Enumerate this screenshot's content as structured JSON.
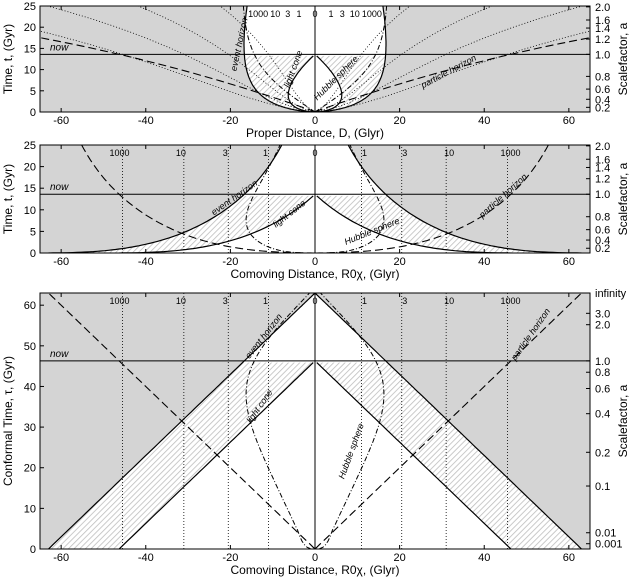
{
  "chart_data": [
    {
      "type": "line",
      "panel": "proper-distance",
      "xlabel": "Proper Distance, D, (Glyr)",
      "ylabel": "Time, t, (Gyr)",
      "y2label": "Scalefactor, a",
      "xlim": [
        -65,
        65
      ],
      "ylim": [
        0,
        25
      ],
      "xticks": [
        -60,
        -40,
        -20,
        0,
        20,
        40,
        60
      ],
      "yticks": [
        0,
        5,
        10,
        15,
        20,
        25
      ],
      "y2ticks": [
        {
          "label": "0.2",
          "t": 1.1
        },
        {
          "label": "0.4",
          "t": 3.0
        },
        {
          "label": "0.6",
          "t": 5.4
        },
        {
          "label": "0.8",
          "t": 8.4
        },
        {
          "label": "1.0",
          "t": 13.6
        },
        {
          "label": "1.2",
          "t": 17.2
        },
        {
          "label": "1.4",
          "t": 19.8
        },
        {
          "label": "1.6",
          "t": 21.7
        },
        {
          "label": "2.0",
          "t": 24.8
        }
      ],
      "now_t": 13.6,
      "now_label": "now",
      "redshift_labels": [
        "1000",
        "10",
        "3",
        "1",
        "0",
        "1",
        "3",
        "10",
        "1000"
      ],
      "annotations": [
        "event horizon",
        "light cone",
        "Hubble sphere",
        "particle horizon"
      ]
    },
    {
      "type": "line",
      "panel": "comoving-distance",
      "xlabel": "Comoving Distance, R0χ, (Glyr)",
      "ylabel": "Time, t, (Gyr)",
      "y2label": "Scalefactor, a",
      "xlim": [
        -65,
        65
      ],
      "ylim": [
        0,
        25
      ],
      "xticks": [
        -60,
        -40,
        -20,
        0,
        20,
        40,
        60
      ],
      "yticks": [
        0,
        5,
        10,
        15,
        20,
        25
      ],
      "y2ticks": [
        {
          "label": "0.2",
          "t": 1.1
        },
        {
          "label": "0.4",
          "t": 3.0
        },
        {
          "label": "0.6",
          "t": 5.4
        },
        {
          "label": "0.8",
          "t": 8.4
        },
        {
          "label": "1.0",
          "t": 13.6
        },
        {
          "label": "1.2",
          "t": 17.2
        },
        {
          "label": "1.4",
          "t": 19.8
        },
        {
          "label": "1.6",
          "t": 21.7
        },
        {
          "label": "2.0",
          "t": 24.8
        }
      ],
      "now_t": 13.6,
      "now_label": "now",
      "redshift_labels": [
        "1000",
        "10",
        "3",
        "1",
        "0",
        "1",
        "3",
        "10",
        "1000"
      ],
      "redshift_x": [
        -45.5,
        -31,
        -20.5,
        -11,
        0,
        11,
        20.5,
        31,
        45.5
      ],
      "annotations": [
        "event horizon",
        "light cone",
        "Hubble sphere",
        "particle horizon"
      ]
    },
    {
      "type": "line",
      "panel": "conformal-time",
      "xlabel": "Comoving Distance, R0χ, (Glyr)",
      "ylabel": "Conformal Time, τ, (Gyr)",
      "y2label": "Scalefactor, a",
      "xlim": [
        -65,
        65
      ],
      "ylim": [
        0,
        63
      ],
      "xticks": [
        -60,
        -40,
        -20,
        0,
        20,
        40,
        60
      ],
      "yticks": [
        0,
        10,
        20,
        30,
        40,
        50,
        60
      ],
      "y2ticks": [
        {
          "label": "infinity",
          "tau": 63.0
        },
        {
          "label": "3.0",
          "tau": 58.0
        },
        {
          "label": "2.0",
          "tau": 55.2
        },
        {
          "label": "1.0",
          "tau": 46.3
        },
        {
          "label": "0.8",
          "tau": 43.5
        },
        {
          "label": "0.6",
          "tau": 39.5
        },
        {
          "label": "0.4",
          "tau": 33.3
        },
        {
          "label": "0.2",
          "tau": 23.8
        },
        {
          "label": "0.1",
          "tau": 15.5
        },
        {
          "label": "0.01",
          "tau": 4.0
        },
        {
          "label": "0.001",
          "tau": 1.3
        }
      ],
      "now_tau": 46.3,
      "now_label": "now",
      "redshift_labels": [
        "1000",
        "10",
        "3",
        "1",
        "0",
        "1",
        "3",
        "10",
        "1000"
      ],
      "redshift_x": [
        -45.5,
        -31,
        -20.5,
        -11,
        0,
        11,
        20.5,
        31,
        45.5
      ],
      "annotations": [
        "event horizon",
        "light cone",
        "Hubble sphere",
        "particle horizon"
      ]
    }
  ]
}
